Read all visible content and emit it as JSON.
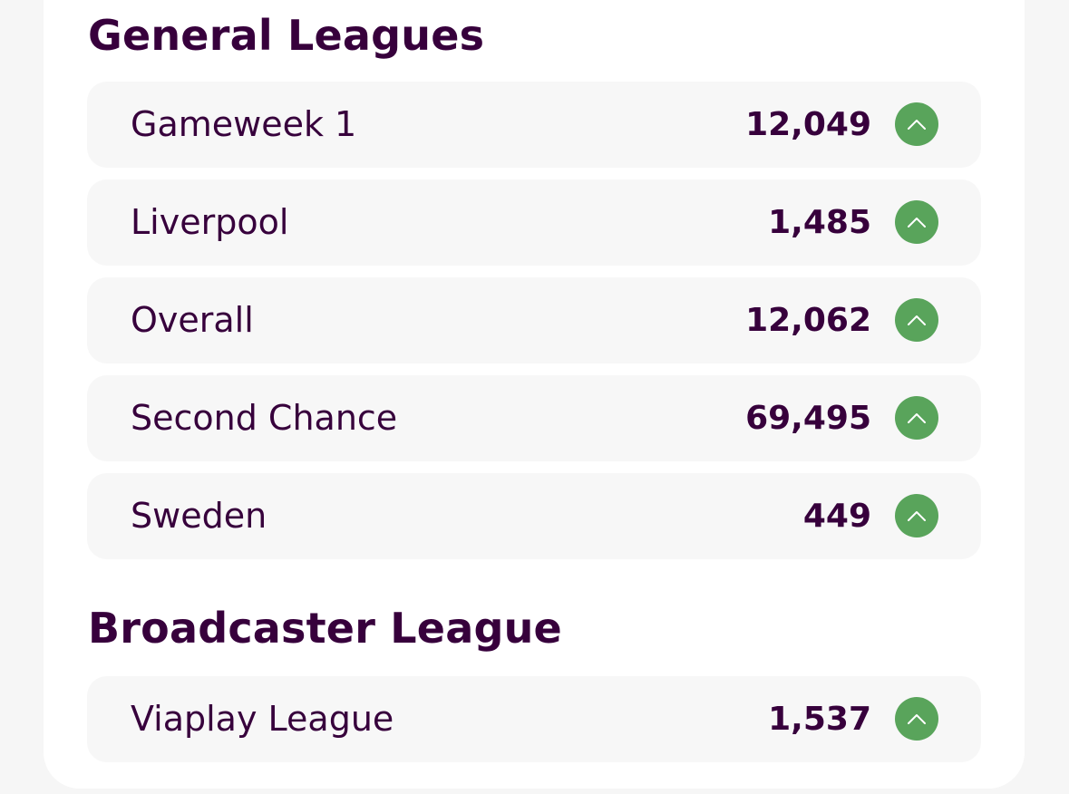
{
  "sections": [
    {
      "title": "General Leagues",
      "leagues": [
        {
          "name": "Gameweek 1",
          "rank": "12,049",
          "movement": "up",
          "icon": "chevron-up-icon"
        },
        {
          "name": "Liverpool",
          "rank": "1,485",
          "movement": "up",
          "icon": "chevron-up-icon"
        },
        {
          "name": "Overall",
          "rank": "12,062",
          "movement": "up",
          "icon": "chevron-up-icon"
        },
        {
          "name": "Second Chance",
          "rank": "69,495",
          "movement": "up",
          "icon": "chevron-up-icon"
        },
        {
          "name": "Sweden",
          "rank": "449",
          "movement": "up",
          "icon": "chevron-up-icon"
        }
      ]
    },
    {
      "title": "Broadcaster League",
      "leagues": [
        {
          "name": "Viaplay League",
          "rank": "1,537",
          "movement": "up",
          "icon": "chevron-up-icon"
        }
      ]
    }
  ],
  "colors": {
    "text": "#37003c",
    "row_background": "#f7f7f7",
    "card_background": "#ffffff",
    "page_background": "#f6f6f6",
    "rank_up": "#59a45b"
  }
}
